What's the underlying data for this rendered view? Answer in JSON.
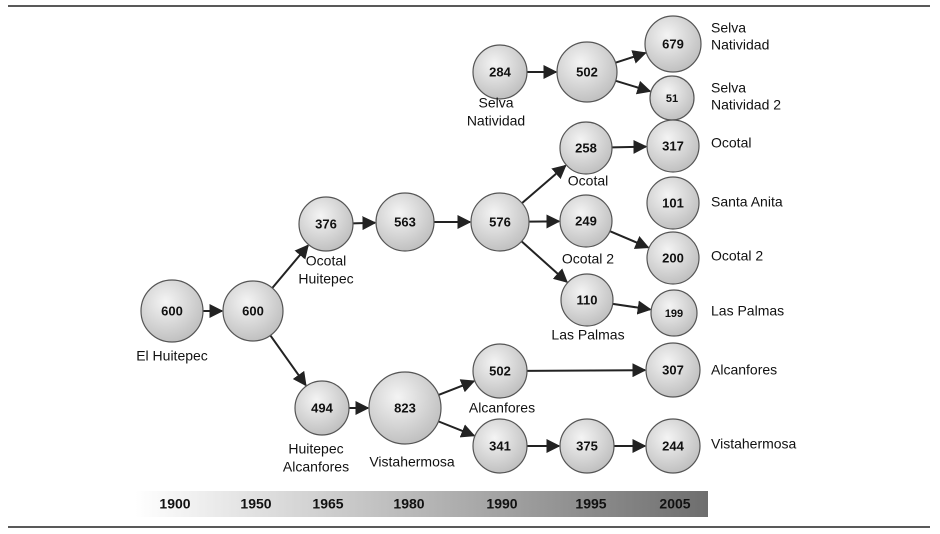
{
  "nodes": [
    {
      "value": "600",
      "caption": [
        "El Huitepec"
      ]
    },
    {
      "value": "600"
    },
    {
      "value": "376",
      "caption": [
        "Ocotal",
        "Huitepec"
      ]
    },
    {
      "value": "494",
      "caption": [
        "Huitepec",
        "Alcanfores"
      ]
    },
    {
      "value": "563"
    },
    {
      "value": "823",
      "caption": [
        "Vistahermosa"
      ]
    },
    {
      "value": "576"
    },
    {
      "value": "284",
      "caption": [
        "Selva",
        "Natividad"
      ]
    },
    {
      "value": "502"
    },
    {
      "value": "679"
    },
    {
      "value": "51"
    },
    {
      "value": "258",
      "caption": [
        "Ocotal"
      ]
    },
    {
      "value": "249",
      "caption": [
        "Ocotal 2"
      ]
    },
    {
      "value": "110",
      "caption": [
        "Las Palmas"
      ]
    },
    {
      "value": "502",
      "caption": [
        "Alcanfores"
      ]
    },
    {
      "value": "341"
    },
    {
      "value": "317"
    },
    {
      "value": "101"
    },
    {
      "value": "200"
    },
    {
      "value": "199"
    },
    {
      "value": "307"
    },
    {
      "value": "375"
    },
    {
      "value": "244"
    }
  ],
  "outcomes": [
    [
      "Selva",
      "Natividad"
    ],
    [
      "Selva",
      "Natividad 2"
    ],
    [
      "Ocotal"
    ],
    [
      "Santa Anita"
    ],
    [
      "Ocotal 2"
    ],
    [
      "Las Palmas"
    ],
    [
      "Alcanfores"
    ],
    [
      "Vistahermosa"
    ]
  ],
  "timeline": [
    "1900",
    "1950",
    "1965",
    "1980",
    "1990",
    "1995",
    "2005"
  ]
}
